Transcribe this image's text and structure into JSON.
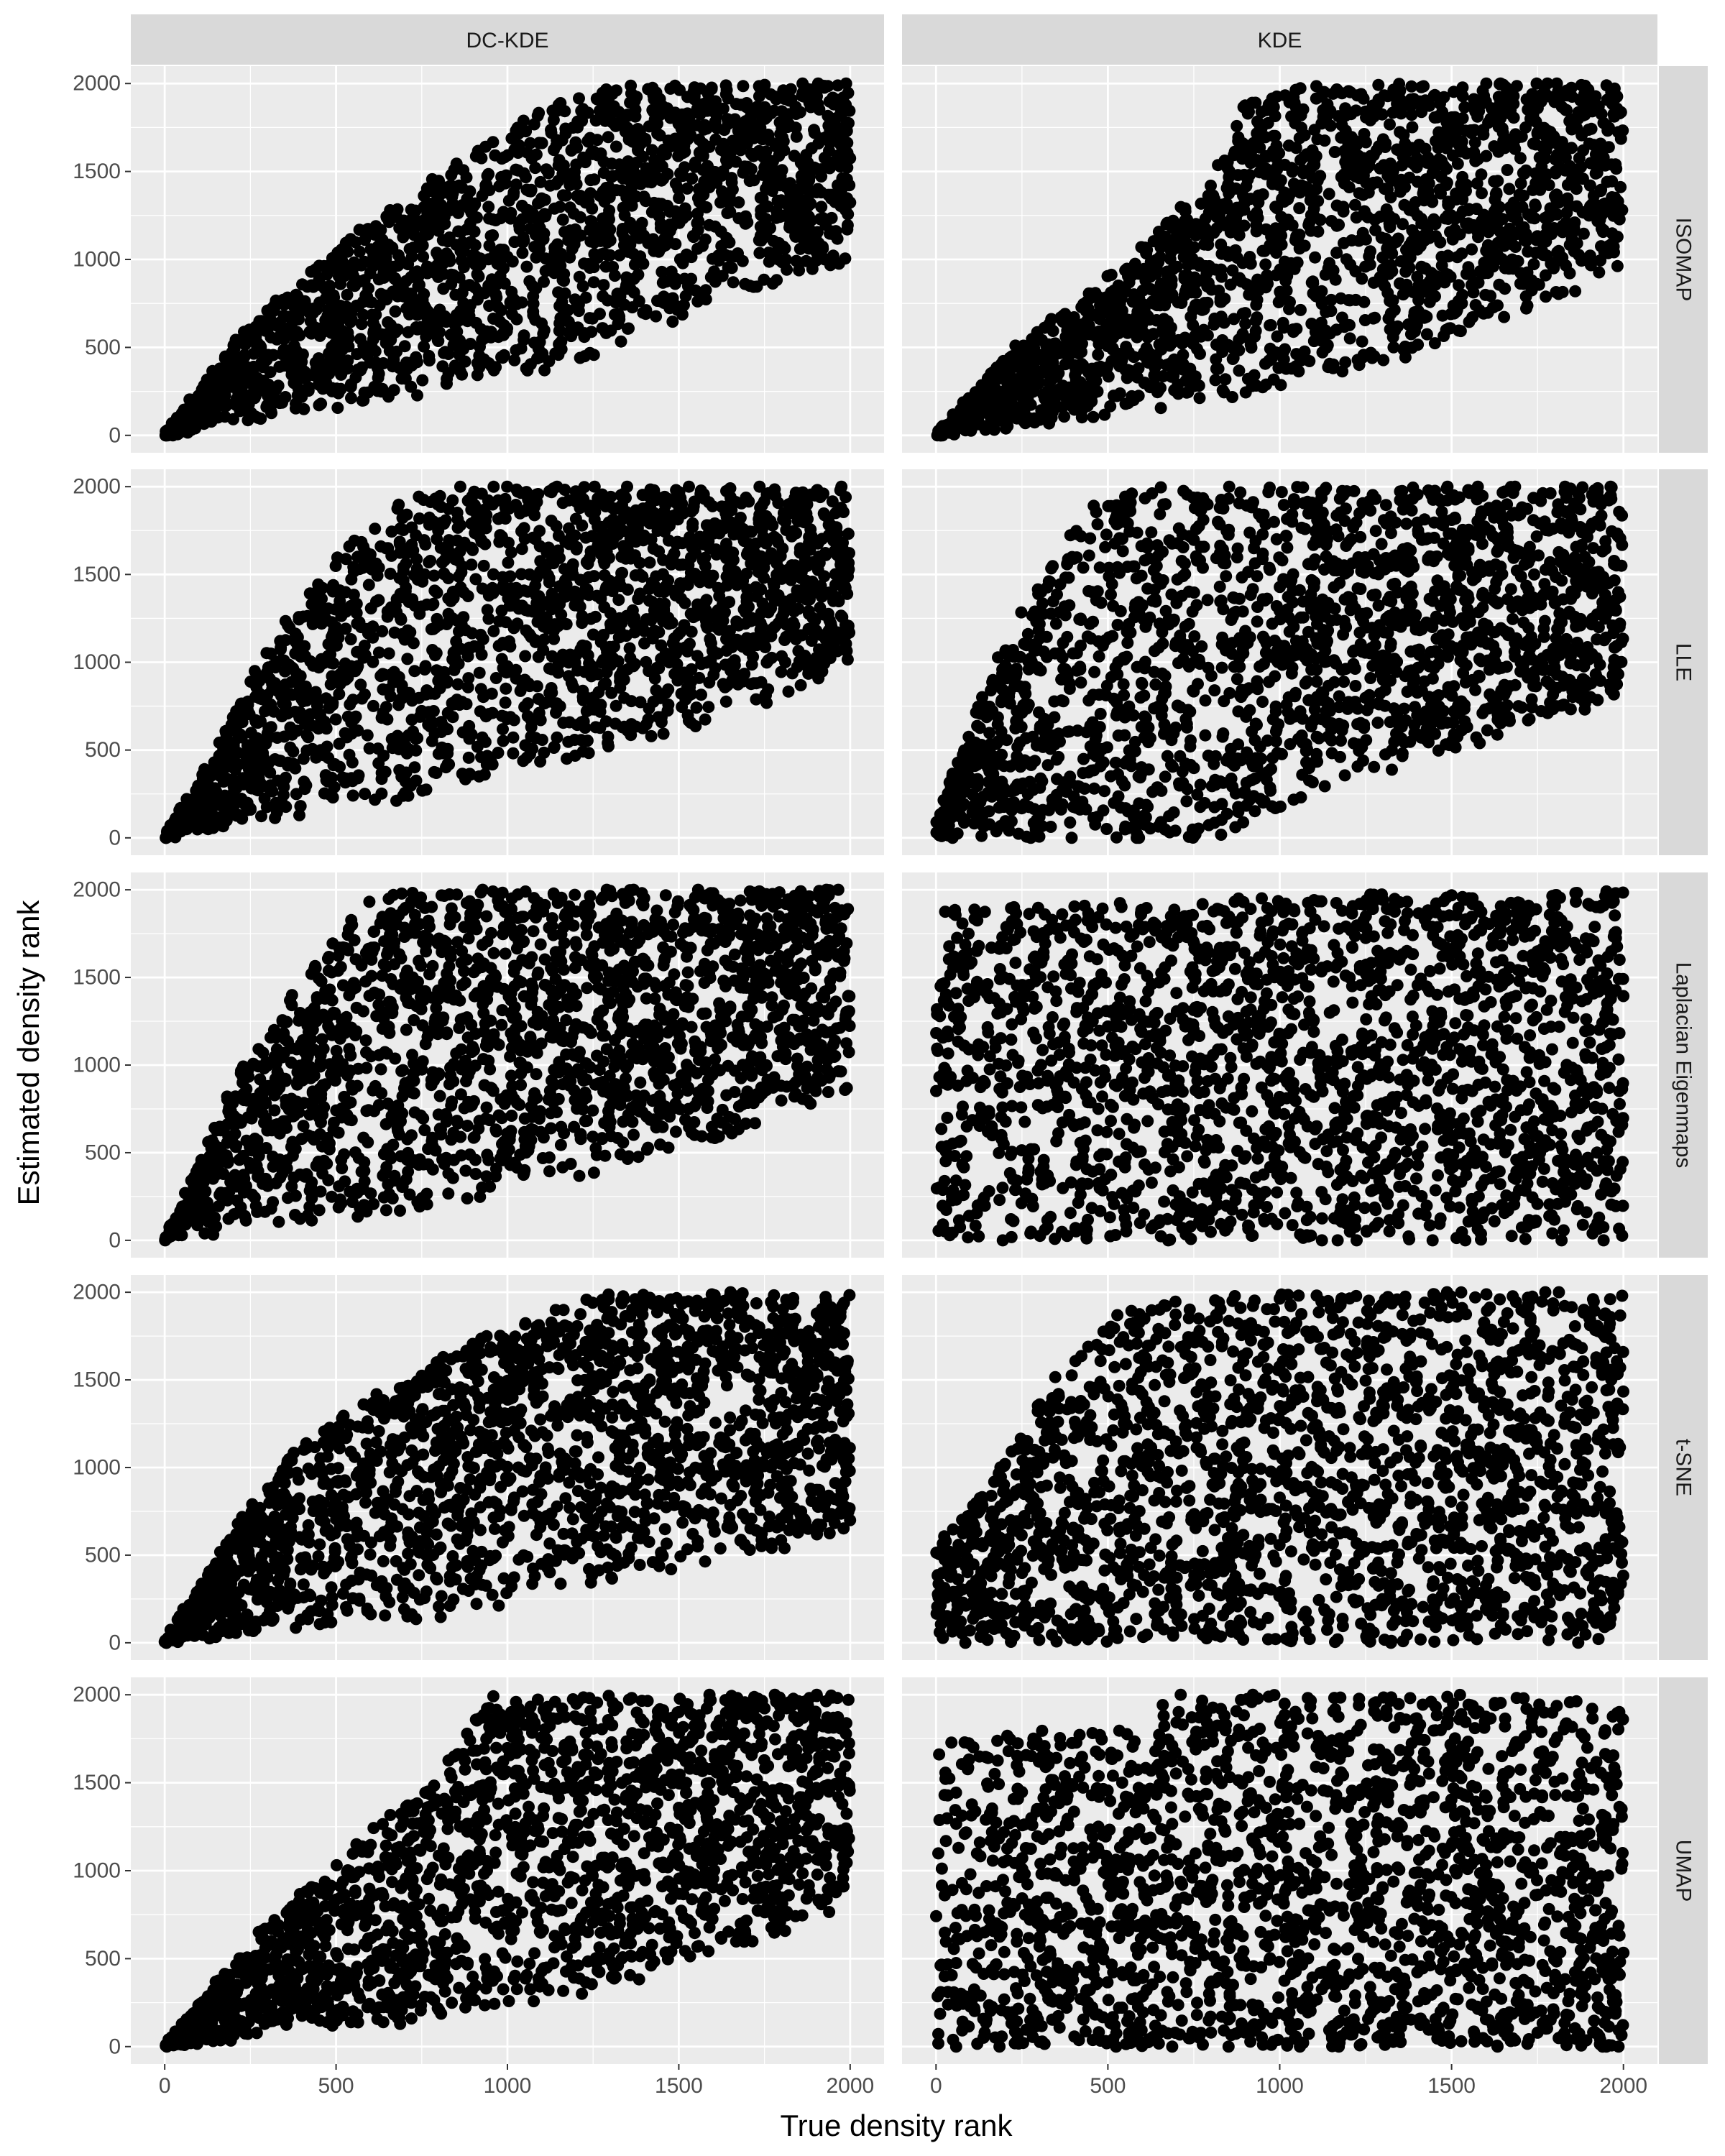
{
  "chart_data": {
    "type": "scatter",
    "layout": "facet_grid",
    "xlabel": "True density rank",
    "ylabel": "Estimated density rank",
    "xlim": [
      0,
      2000
    ],
    "ylim": [
      0,
      2000
    ],
    "x_ticks": [
      "0",
      "500",
      "1000",
      "1500",
      "2000"
    ],
    "y_ticks": [
      "0",
      "500",
      "1000",
      "1500",
      "2000"
    ],
    "column_facets": [
      "DC-KDE",
      "KDE"
    ],
    "row_facets": [
      "ISOMAP",
      "LLE",
      "Laplacian Eigenmaps",
      "t-SNE",
      "UMAP"
    ],
    "points_per_panel": 2000,
    "colors": {
      "panel_background": "#ebebeb",
      "grid_major": "#ffffff",
      "strip_background": "#d9d9d9",
      "point": "#000000"
    },
    "panels": [
      {
        "row": "ISOMAP",
        "col": "DC-KDE",
        "cloud": {
          "lower_x": [
            [
              0,
              0
            ],
            [
              400,
              130
            ],
            [
              800,
              250
            ],
            [
              1200,
              420
            ],
            [
              1600,
              750
            ],
            [
              2000,
              1000
            ]
          ],
          "upper_x": [
            [
              0,
              0
            ],
            [
              250,
              650
            ],
            [
              500,
              1050
            ],
            [
              800,
              1500
            ],
            [
              1100,
              1850
            ],
            [
              1300,
              2000
            ],
            [
              2000,
              2000
            ]
          ],
          "low_concentration": 0.85
        }
      },
      {
        "row": "ISOMAP",
        "col": "KDE",
        "cloud": {
          "lower_x": [
            [
              0,
              0
            ],
            [
              400,
              90
            ],
            [
              800,
              200
            ],
            [
              1200,
              350
            ],
            [
              1600,
              600
            ],
            [
              2000,
              950
            ]
          ],
          "upper_x": [
            [
              0,
              0
            ],
            [
              200,
              450
            ],
            [
              500,
              900
            ],
            [
              800,
              1450
            ],
            [
              900,
              1900
            ],
            [
              1100,
              2000
            ],
            [
              2000,
              2000
            ]
          ],
          "low_concentration": 0.85
        }
      },
      {
        "row": "LLE",
        "col": "DC-KDE",
        "cloud": {
          "lower_x": [
            [
              0,
              0
            ],
            [
              400,
              150
            ],
            [
              800,
              250
            ],
            [
              1200,
              450
            ],
            [
              1600,
              650
            ],
            [
              2000,
              950
            ]
          ],
          "upper_x": [
            [
              0,
              0
            ],
            [
              150,
              500
            ],
            [
              300,
              1100
            ],
            [
              550,
              1700
            ],
            [
              750,
              2000
            ],
            [
              2000,
              2000
            ]
          ],
          "low_concentration": 0.85
        }
      },
      {
        "row": "LLE",
        "col": "KDE",
        "cloud": {
          "lower_x": [
            [
              0,
              0
            ],
            [
              800,
              0
            ],
            [
              1100,
              250
            ],
            [
              1500,
              500
            ],
            [
              2000,
              800
            ]
          ],
          "upper_x": [
            [
              0,
              100
            ],
            [
              150,
              900
            ],
            [
              250,
              1300
            ],
            [
              450,
              1900
            ],
            [
              600,
              2000
            ],
            [
              2000,
              2000
            ]
          ],
          "low_concentration": 1.0
        }
      },
      {
        "row": "Laplacian Eigenmaps",
        "col": "DC-KDE",
        "cloud": {
          "lower_x": [
            [
              0,
              0
            ],
            [
              400,
              100
            ],
            [
              800,
              200
            ],
            [
              1200,
              350
            ],
            [
              1600,
              550
            ],
            [
              2000,
              850
            ]
          ],
          "upper_x": [
            [
              0,
              0
            ],
            [
              200,
              900
            ],
            [
              400,
              1500
            ],
            [
              600,
              1950
            ],
            [
              700,
              2000
            ],
            [
              2000,
              2000
            ]
          ],
          "low_concentration": 0.85
        }
      },
      {
        "row": "Laplacian Eigenmaps",
        "col": "KDE",
        "cloud": {
          "lower_x": [
            [
              0,
              0
            ],
            [
              2000,
              0
            ]
          ],
          "upper_x": [
            [
              0,
              1900
            ],
            [
              2000,
              2000
            ]
          ],
          "low_concentration": 1.0
        }
      },
      {
        "row": "t-SNE",
        "col": "DC-KDE",
        "cloud": {
          "lower_x": [
            [
              0,
              0
            ],
            [
              400,
              80
            ],
            [
              800,
              150
            ],
            [
              1200,
              300
            ],
            [
              1600,
              450
            ],
            [
              2000,
              600
            ]
          ],
          "upper_x": [
            [
              0,
              0
            ],
            [
              200,
              650
            ],
            [
              400,
              1150
            ],
            [
              650,
              1450
            ],
            [
              1000,
              1800
            ],
            [
              1300,
              2000
            ],
            [
              2000,
              2000
            ]
          ],
          "low_concentration": 0.8
        }
      },
      {
        "row": "t-SNE",
        "col": "KDE",
        "cloud": {
          "lower_x": [
            [
              0,
              0
            ],
            [
              2000,
              0
            ]
          ],
          "upper_x": [
            [
              0,
              550
            ],
            [
              150,
              900
            ],
            [
              350,
              1550
            ],
            [
              550,
              1900
            ],
            [
              700,
              2000
            ],
            [
              2000,
              2000
            ]
          ],
          "low_concentration": 1.0
        }
      },
      {
        "row": "UMAP",
        "col": "DC-KDE",
        "cloud": {
          "lower_x": [
            [
              0,
              0
            ],
            [
              400,
              80
            ],
            [
              800,
              150
            ],
            [
              1200,
              300
            ],
            [
              1600,
              500
            ],
            [
              2000,
              800
            ]
          ],
          "upper_x": [
            [
              0,
              0
            ],
            [
              250,
              600
            ],
            [
              500,
              1050
            ],
            [
              800,
              1550
            ],
            [
              950,
              2000
            ],
            [
              2000,
              2000
            ]
          ],
          "low_concentration": 0.85
        }
      },
      {
        "row": "UMAP",
        "col": "KDE",
        "cloud": {
          "lower_x": [
            [
              0,
              0
            ],
            [
              2000,
              0
            ]
          ],
          "upper_x": [
            [
              0,
              1750
            ],
            [
              500,
              1800
            ],
            [
              700,
              2000
            ],
            [
              2000,
              2000
            ]
          ],
          "low_concentration": 1.2
        }
      }
    ]
  }
}
